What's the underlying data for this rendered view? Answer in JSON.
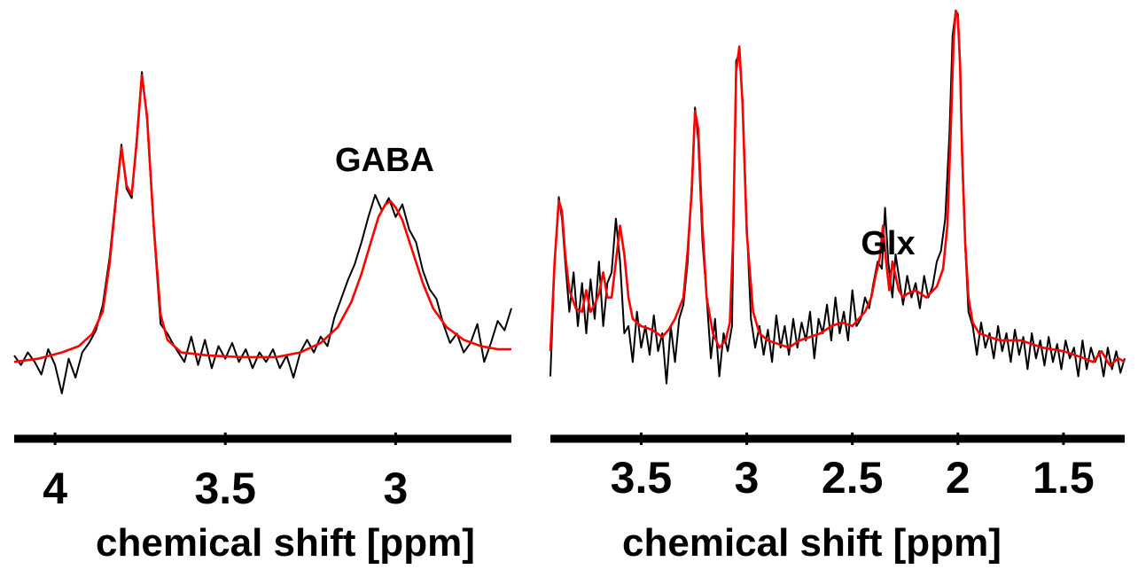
{
  "chart_data": [
    {
      "type": "line",
      "xlabel": "chemical shift [ppm]",
      "x_reversed": true,
      "xlim": [
        4.12,
        2.66
      ],
      "ylim": [
        -0.12,
        1.0
      ],
      "xticks": [
        4,
        3.5,
        3
      ],
      "xtick_labels": [
        "4",
        "3.5",
        "3"
      ],
      "annotations": [
        {
          "text": "GABA",
          "x": 3.01,
          "y": 0.75
        }
      ],
      "series": [
        {
          "color": "#ff0000",
          "x": [
            4.12,
            4.05,
            3.98,
            3.93,
            3.89,
            3.86,
            3.84,
            3.82,
            3.805,
            3.79,
            3.775,
            3.76,
            3.745,
            3.73,
            3.71,
            3.69,
            3.67,
            3.63,
            3.55,
            3.45,
            3.35,
            3.28,
            3.22,
            3.17,
            3.13,
            3.1,
            3.07,
            3.05,
            3.03,
            3.015,
            3.0,
            2.98,
            2.95,
            2.92,
            2.89,
            2.85,
            2.8,
            2.75,
            2.7,
            2.66
          ],
          "y": [
            0.02,
            0.03,
            0.05,
            0.07,
            0.11,
            0.18,
            0.33,
            0.55,
            0.7,
            0.58,
            0.55,
            0.72,
            0.93,
            0.8,
            0.45,
            0.17,
            0.09,
            0.05,
            0.04,
            0.035,
            0.035,
            0.05,
            0.08,
            0.13,
            0.21,
            0.3,
            0.41,
            0.48,
            0.52,
            0.53,
            0.51,
            0.47,
            0.37,
            0.27,
            0.19,
            0.13,
            0.09,
            0.07,
            0.06,
            0.06
          ]
        },
        {
          "color": "#000000",
          "x": [
            4.12,
            4.1,
            4.08,
            4.06,
            4.04,
            4.02,
            4.0,
            3.98,
            3.96,
            3.94,
            3.92,
            3.9,
            3.88,
            3.86,
            3.84,
            3.82,
            3.805,
            3.79,
            3.775,
            3.76,
            3.745,
            3.73,
            3.71,
            3.69,
            3.67,
            3.65,
            3.62,
            3.6,
            3.58,
            3.56,
            3.54,
            3.52,
            3.5,
            3.48,
            3.46,
            3.44,
            3.42,
            3.4,
            3.38,
            3.36,
            3.34,
            3.32,
            3.3,
            3.28,
            3.26,
            3.24,
            3.22,
            3.2,
            3.18,
            3.16,
            3.14,
            3.12,
            3.1,
            3.08,
            3.06,
            3.04,
            3.02,
            3.0,
            2.98,
            2.96,
            2.94,
            2.92,
            2.9,
            2.88,
            2.86,
            2.84,
            2.82,
            2.8,
            2.78,
            2.76,
            2.74,
            2.72,
            2.7,
            2.68,
            2.66
          ],
          "y": [
            0.04,
            0.01,
            0.05,
            0.02,
            -0.02,
            0.06,
            0.01,
            -0.08,
            0.03,
            -0.03,
            0.05,
            0.08,
            0.12,
            0.2,
            0.35,
            0.56,
            0.71,
            0.57,
            0.54,
            0.73,
            0.94,
            0.79,
            0.44,
            0.14,
            0.11,
            0.07,
            0.02,
            0.1,
            0.01,
            0.09,
            0.0,
            0.07,
            0.03,
            0.08,
            0.02,
            0.06,
            0.0,
            0.05,
            0.02,
            0.06,
            0.0,
            0.04,
            -0.03,
            0.05,
            0.09,
            0.05,
            0.1,
            0.07,
            0.16,
            0.22,
            0.28,
            0.33,
            0.4,
            0.48,
            0.55,
            0.5,
            0.54,
            0.48,
            0.52,
            0.44,
            0.4,
            0.31,
            0.25,
            0.22,
            0.14,
            0.08,
            0.11,
            0.05,
            0.08,
            0.14,
            0.02,
            0.08,
            0.15,
            0.12,
            0.19
          ]
        }
      ]
    },
    {
      "type": "line",
      "xlabel": "chemical shift [ppm]",
      "x_reversed": true,
      "xlim": [
        3.93,
        1.21
      ],
      "ylim": [
        -0.12,
        1.0
      ],
      "xticks": [
        3.5,
        3,
        2.5,
        2,
        1.5
      ],
      "xtick_labels": [
        "3.5",
        "3",
        "2.5",
        "2",
        "1.5"
      ],
      "annotations": [
        {
          "text": "Glx",
          "x": 2.34,
          "y": 0.45
        }
      ],
      "series": [
        {
          "color": "#ff0000",
          "x": [
            3.93,
            3.91,
            3.89,
            3.875,
            3.86,
            3.84,
            3.81,
            3.78,
            3.76,
            3.74,
            3.72,
            3.7,
            3.68,
            3.66,
            3.64,
            3.62,
            3.6,
            3.58,
            3.56,
            3.54,
            3.5,
            3.45,
            3.4,
            3.37,
            3.34,
            3.3,
            3.28,
            3.26,
            3.245,
            3.23,
            3.21,
            3.19,
            3.16,
            3.13,
            3.1,
            3.08,
            3.065,
            3.05,
            3.035,
            3.02,
            3.0,
            2.97,
            2.94,
            2.9,
            2.85,
            2.8,
            2.75,
            2.7,
            2.65,
            2.6,
            2.55,
            2.5,
            2.47,
            2.44,
            2.41,
            2.39,
            2.37,
            2.355,
            2.34,
            2.325,
            2.31,
            2.295,
            2.28,
            2.26,
            2.24,
            2.2,
            2.15,
            2.1,
            2.07,
            2.05,
            2.035,
            2.02,
            2.01,
            2.0,
            1.99,
            1.98,
            1.965,
            1.95,
            1.93,
            1.9,
            1.85,
            1.8,
            1.7,
            1.6,
            1.5,
            1.45,
            1.4,
            1.36,
            1.32,
            1.28,
            1.24,
            1.21
          ],
          "y": [
            0.05,
            0.3,
            0.47,
            0.44,
            0.32,
            0.22,
            0.17,
            0.16,
            0.22,
            0.16,
            0.18,
            0.21,
            0.27,
            0.2,
            0.2,
            0.3,
            0.4,
            0.32,
            0.2,
            0.14,
            0.12,
            0.11,
            0.09,
            0.11,
            0.14,
            0.2,
            0.33,
            0.5,
            0.72,
            0.67,
            0.4,
            0.2,
            0.1,
            0.06,
            0.08,
            0.13,
            0.36,
            0.83,
            0.9,
            0.74,
            0.38,
            0.16,
            0.1,
            0.08,
            0.07,
            0.06,
            0.08,
            0.09,
            0.1,
            0.12,
            0.13,
            0.12,
            0.14,
            0.16,
            0.2,
            0.26,
            0.31,
            0.4,
            0.3,
            0.22,
            0.3,
            0.26,
            0.22,
            0.2,
            0.21,
            0.22,
            0.2,
            0.23,
            0.28,
            0.4,
            0.65,
            0.92,
            1.0,
            0.98,
            0.85,
            0.6,
            0.35,
            0.2,
            0.13,
            0.1,
            0.09,
            0.08,
            0.08,
            0.06,
            0.05,
            0.04,
            0.03,
            0.02,
            0.05,
            0.01,
            0.03,
            0.02
          ]
        },
        {
          "color": "#000000",
          "x": [
            3.93,
            3.91,
            3.89,
            3.875,
            3.86,
            3.84,
            3.82,
            3.8,
            3.78,
            3.76,
            3.74,
            3.72,
            3.7,
            3.68,
            3.66,
            3.64,
            3.62,
            3.6,
            3.58,
            3.56,
            3.54,
            3.52,
            3.5,
            3.48,
            3.46,
            3.44,
            3.42,
            3.4,
            3.38,
            3.36,
            3.34,
            3.32,
            3.3,
            3.28,
            3.26,
            3.245,
            3.23,
            3.21,
            3.19,
            3.17,
            3.15,
            3.13,
            3.11,
            3.09,
            3.07,
            3.05,
            3.035,
            3.02,
            3.0,
            2.98,
            2.96,
            2.94,
            2.92,
            2.9,
            2.88,
            2.86,
            2.84,
            2.82,
            2.8,
            2.78,
            2.76,
            2.74,
            2.72,
            2.7,
            2.68,
            2.66,
            2.64,
            2.62,
            2.6,
            2.58,
            2.56,
            2.54,
            2.52,
            2.5,
            2.48,
            2.46,
            2.44,
            2.42,
            2.4,
            2.38,
            2.36,
            2.345,
            2.33,
            2.31,
            2.295,
            2.28,
            2.26,
            2.24,
            2.22,
            2.2,
            2.18,
            2.16,
            2.14,
            2.12,
            2.1,
            2.08,
            2.06,
            2.04,
            2.025,
            2.01,
            2.0,
            1.99,
            1.98,
            1.965,
            1.95,
            1.93,
            1.91,
            1.89,
            1.87,
            1.85,
            1.83,
            1.81,
            1.79,
            1.77,
            1.75,
            1.73,
            1.71,
            1.69,
            1.67,
            1.65,
            1.63,
            1.61,
            1.59,
            1.57,
            1.55,
            1.53,
            1.51,
            1.49,
            1.47,
            1.45,
            1.43,
            1.41,
            1.39,
            1.37,
            1.35,
            1.33,
            1.31,
            1.29,
            1.27,
            1.25,
            1.23,
            1.21
          ],
          "y": [
            -0.02,
            0.3,
            0.48,
            0.42,
            0.3,
            0.16,
            0.27,
            0.12,
            0.24,
            0.1,
            0.25,
            0.14,
            0.3,
            0.12,
            0.24,
            0.27,
            0.42,
            0.3,
            0.1,
            0.12,
            0.02,
            0.16,
            0.06,
            0.12,
            0.04,
            0.15,
            0.05,
            0.1,
            -0.04,
            0.12,
            0.02,
            0.14,
            0.18,
            0.3,
            0.52,
            0.73,
            0.64,
            0.36,
            0.2,
            0.03,
            0.14,
            -0.02,
            0.1,
            0.05,
            0.12,
            0.86,
            0.88,
            0.75,
            0.4,
            0.14,
            0.06,
            0.12,
            0.04,
            0.11,
            0.02,
            0.15,
            0.06,
            0.12,
            0.04,
            0.14,
            0.06,
            0.13,
            0.08,
            0.16,
            0.03,
            0.14,
            0.1,
            0.18,
            0.08,
            0.2,
            0.1,
            0.16,
            0.08,
            0.22,
            0.12,
            0.14,
            0.2,
            0.17,
            0.24,
            0.3,
            0.28,
            0.45,
            0.3,
            0.2,
            0.32,
            0.26,
            0.18,
            0.26,
            0.2,
            0.24,
            0.17,
            0.26,
            0.2,
            0.23,
            0.3,
            0.33,
            0.42,
            0.66,
            0.93,
            1.0,
            0.99,
            0.86,
            0.58,
            0.34,
            0.16,
            0.12,
            0.04,
            0.13,
            0.06,
            0.1,
            0.03,
            0.12,
            0.05,
            0.1,
            0.02,
            0.11,
            0.04,
            0.09,
            0.0,
            0.1,
            0.03,
            0.08,
            0.01,
            0.09,
            0.02,
            0.07,
            0.0,
            0.08,
            0.03,
            0.06,
            -0.02,
            0.08,
            0.0,
            0.06,
            0.02,
            0.05,
            -0.02,
            0.06,
            0.0,
            0.05,
            -0.01,
            0.03
          ]
        }
      ]
    }
  ]
}
